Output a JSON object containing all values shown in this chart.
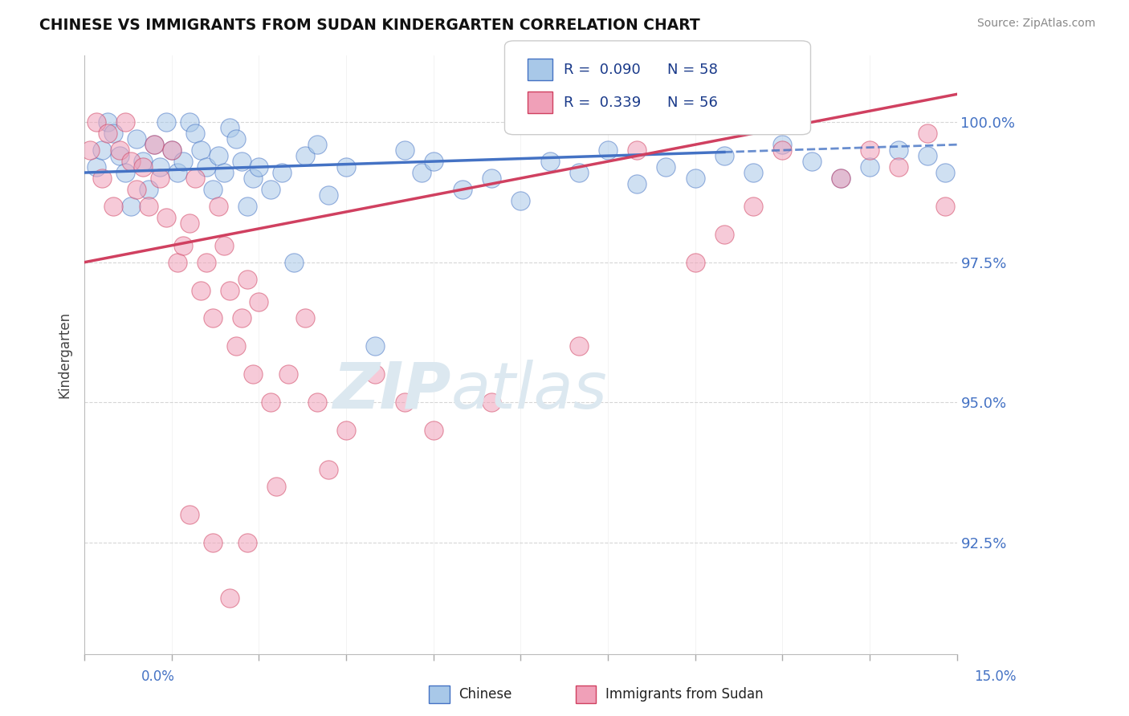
{
  "title": "CHINESE VS IMMIGRANTS FROM SUDAN KINDERGARTEN CORRELATION CHART",
  "source": "Source: ZipAtlas.com",
  "ylabel": "Kindergarten",
  "xlim": [
    0.0,
    15.0
  ],
  "ylim": [
    90.5,
    101.2
  ],
  "yticks": [
    92.5,
    95.0,
    97.5,
    100.0
  ],
  "yticklabels": [
    "92.5%",
    "95.0%",
    "97.5%",
    "100.0%"
  ],
  "color_chinese": "#a8c8e8",
  "color_sudan": "#f0a0b8",
  "color_line_chinese": "#4472C4",
  "color_line_sudan": "#D04060",
  "color_text_legend": "#1a3a8a",
  "color_watermark": "#dce8f0",
  "background_color": "#ffffff",
  "chinese_x": [
    0.2,
    0.3,
    0.4,
    0.5,
    0.6,
    0.7,
    0.8,
    0.9,
    1.0,
    1.1,
    1.2,
    1.3,
    1.4,
    1.5,
    1.6,
    1.7,
    1.8,
    1.9,
    2.0,
    2.1,
    2.2,
    2.3,
    2.4,
    2.5,
    2.6,
    2.7,
    2.8,
    2.9,
    3.0,
    3.2,
    3.4,
    3.6,
    3.8,
    4.0,
    4.2,
    4.5,
    5.0,
    5.5,
    5.8,
    6.0,
    6.5,
    7.0,
    7.5,
    8.0,
    8.5,
    9.0,
    9.5,
    10.0,
    10.5,
    11.0,
    11.5,
    12.0,
    12.5,
    13.0,
    13.5,
    14.0,
    14.5,
    14.8
  ],
  "chinese_y": [
    99.2,
    99.5,
    100.0,
    99.8,
    99.4,
    99.1,
    98.5,
    99.7,
    99.3,
    98.8,
    99.6,
    99.2,
    100.0,
    99.5,
    99.1,
    99.3,
    100.0,
    99.8,
    99.5,
    99.2,
    98.8,
    99.4,
    99.1,
    99.9,
    99.7,
    99.3,
    98.5,
    99.0,
    99.2,
    98.8,
    99.1,
    97.5,
    99.4,
    99.6,
    98.7,
    99.2,
    96.0,
    99.5,
    99.1,
    99.3,
    98.8,
    99.0,
    98.6,
    99.3,
    99.1,
    99.5,
    98.9,
    99.2,
    99.0,
    99.4,
    99.1,
    99.6,
    99.3,
    99.0,
    99.2,
    99.5,
    99.4,
    99.1
  ],
  "sudan_x": [
    0.1,
    0.2,
    0.3,
    0.4,
    0.5,
    0.6,
    0.7,
    0.8,
    0.9,
    1.0,
    1.1,
    1.2,
    1.3,
    1.4,
    1.5,
    1.6,
    1.7,
    1.8,
    1.9,
    2.0,
    2.1,
    2.2,
    2.3,
    2.4,
    2.5,
    2.6,
    2.7,
    2.8,
    2.9,
    3.0,
    3.2,
    3.5,
    3.8,
    4.0,
    4.5,
    5.0,
    5.5,
    6.0,
    7.0,
    8.5,
    9.5,
    10.5,
    11.0,
    11.5,
    12.0,
    13.0,
    13.5,
    14.0,
    14.5,
    14.8,
    1.8,
    2.2,
    2.5,
    2.8,
    3.3,
    4.2
  ],
  "sudan_y": [
    99.5,
    100.0,
    99.0,
    99.8,
    98.5,
    99.5,
    100.0,
    99.3,
    98.8,
    99.2,
    98.5,
    99.6,
    99.0,
    98.3,
    99.5,
    97.5,
    97.8,
    98.2,
    99.0,
    97.0,
    97.5,
    96.5,
    98.5,
    97.8,
    97.0,
    96.0,
    96.5,
    97.2,
    95.5,
    96.8,
    95.0,
    95.5,
    96.5,
    95.0,
    94.5,
    95.5,
    95.0,
    94.5,
    95.0,
    96.0,
    99.5,
    97.5,
    98.0,
    98.5,
    99.5,
    99.0,
    99.5,
    99.2,
    99.8,
    98.5,
    93.0,
    92.5,
    91.5,
    92.5,
    93.5,
    93.8
  ],
  "trend_chinese_x0": 0.0,
  "trend_chinese_y0": 99.1,
  "trend_chinese_x1": 15.0,
  "trend_chinese_y1": 99.6,
  "trend_sudan_x0": 0.0,
  "trend_sudan_y0": 97.5,
  "trend_sudan_x1": 15.0,
  "trend_sudan_y1": 100.5,
  "dashed_start_x": 11.0
}
